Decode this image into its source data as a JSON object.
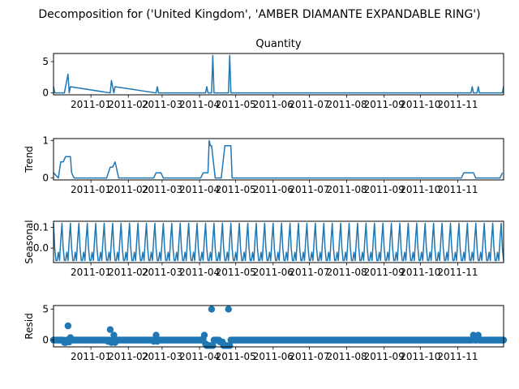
{
  "suptitle": "Decomposition for ('United Kingdom', 'AMBER DIAMANTE EXPANDABLE RING')",
  "x_tick_labels": [
    "2011-01",
    "2011-02",
    "2011-03",
    "2011-04",
    "2011-05",
    "2011-06",
    "2011-07",
    "2011-08",
    "2011-09",
    "2011-10",
    "2011-11"
  ],
  "line_color": "#1f77b4",
  "chart_data": [
    {
      "type": "line",
      "title": "Quantity",
      "ylabel": "",
      "yticks": [
        0,
        5
      ],
      "ylim": [
        -0.3,
        6.3
      ],
      "xlim": [
        "2010-12-01",
        "2011-12-09"
      ],
      "x": [
        "2010-12-01",
        "2010-12-02",
        "2010-12-03",
        "2010-12-10",
        "2010-12-13",
        "2010-12-14",
        "2010-12-15",
        "2011-01-17",
        "2011-01-18",
        "2011-01-20",
        "2011-01-21",
        "2011-02-24",
        "2011-02-25",
        "2011-02-26",
        "2011-04-06",
        "2011-04-07",
        "2011-04-08",
        "2011-04-11",
        "2011-04-12",
        "2011-04-13",
        "2011-04-25",
        "2011-04-26",
        "2011-04-27",
        "2011-11-12",
        "2011-11-13",
        "2011-11-14",
        "2011-11-17",
        "2011-11-18",
        "2011-11-19",
        "2011-12-08",
        "2011-12-09"
      ],
      "values": [
        1,
        0,
        0,
        0,
        3,
        0,
        1,
        0,
        2,
        0,
        1,
        0,
        1,
        0,
        0,
        1,
        0,
        0,
        6,
        0,
        0,
        6,
        0,
        0,
        1,
        0,
        0,
        1,
        0,
        0,
        1
      ]
    },
    {
      "type": "line",
      "title": "",
      "ylabel": "Trend",
      "yticks": [
        0,
        1
      ],
      "ylim": [
        -0.05,
        1.05
      ],
      "xlim": [
        "2010-12-01",
        "2011-12-09"
      ],
      "x": [
        "2010-12-01",
        "2010-12-05",
        "2010-12-07",
        "2010-12-09",
        "2010-12-11",
        "2010-12-15",
        "2010-12-16",
        "2010-12-18",
        "2011-01-14",
        "2011-01-17",
        "2011-01-19",
        "2011-01-21",
        "2011-01-22",
        "2011-01-24",
        "2011-02-22",
        "2011-02-24",
        "2011-02-28",
        "2011-03-02",
        "2011-04-02",
        "2011-04-04",
        "2011-04-08",
        "2011-04-09",
        "2011-04-10",
        "2011-04-11",
        "2011-04-14",
        "2011-04-16",
        "2011-04-19",
        "2011-04-22",
        "2011-04-23",
        "2011-04-27",
        "2011-04-28",
        "2011-05-01",
        "2011-11-04",
        "2011-11-06",
        "2011-11-14",
        "2011-11-16",
        "2011-12-06",
        "2011-12-08"
      ],
      "values": [
        0.14,
        0,
        0.43,
        0.43,
        0.57,
        0.57,
        0.14,
        0,
        0,
        0.29,
        0.29,
        0.43,
        0.29,
        0,
        0,
        0.14,
        0.14,
        0,
        0,
        0.14,
        0.14,
        1,
        0.86,
        0.86,
        0,
        0,
        0,
        0.86,
        0.86,
        0.86,
        0,
        0,
        0,
        0.14,
        0.14,
        0,
        0,
        0.14
      ]
    },
    {
      "type": "line",
      "title": "",
      "ylabel": "Seasonal",
      "yticks": [
        0.0,
        0.1
      ],
      "ytick_format": "0.0",
      "ylim": [
        -0.07,
        0.13
      ],
      "xlim": [
        "2010-12-01",
        "2011-12-09"
      ],
      "period_days": 7,
      "start": "2010-12-01",
      "end": "2011-12-09",
      "cycle_values": [
        0.12,
        0.0,
        -0.06,
        -0.06,
        -0.02,
        -0.06,
        0.04
      ]
    },
    {
      "type": "scatter",
      "title": "",
      "ylabel": "Resid",
      "yticks": [
        0,
        5
      ],
      "ylim": [
        -1.1,
        5.6
      ],
      "xlim": [
        "2010-12-01",
        "2011-12-09"
      ],
      "baseline": 0,
      "x": [
        "2010-12-10",
        "2010-12-11",
        "2010-12-13",
        "2010-12-14",
        "2010-12-15",
        "2011-01-15",
        "2011-01-17",
        "2011-01-18",
        "2011-01-20",
        "2011-01-21",
        "2011-02-22",
        "2011-02-24",
        "2011-02-25",
        "2011-04-04",
        "2011-04-05",
        "2011-04-06",
        "2011-04-07",
        "2011-04-08",
        "2011-04-09",
        "2011-04-10",
        "2011-04-11",
        "2011-04-12",
        "2011-04-18",
        "2011-04-19",
        "2011-04-20",
        "2011-04-21",
        "2011-04-22",
        "2011-04-23",
        "2011-04-24",
        "2011-04-25",
        "2011-04-26",
        "2011-11-14",
        "2011-11-18"
      ],
      "values": [
        -0.4,
        -0.4,
        2.3,
        -0.3,
        0.4,
        -0.2,
        1.7,
        -0.4,
        0.8,
        -0.4,
        -0.2,
        0.8,
        -0.2,
        0.2,
        0.8,
        -0.6,
        -0.9,
        -0.9,
        -0.9,
        -0.9,
        5.0,
        -0.9,
        -0.3,
        -0.3,
        -0.3,
        -0.9,
        -0.9,
        -0.9,
        -0.9,
        5.0,
        -0.9,
        0.8,
        0.8
      ]
    }
  ]
}
